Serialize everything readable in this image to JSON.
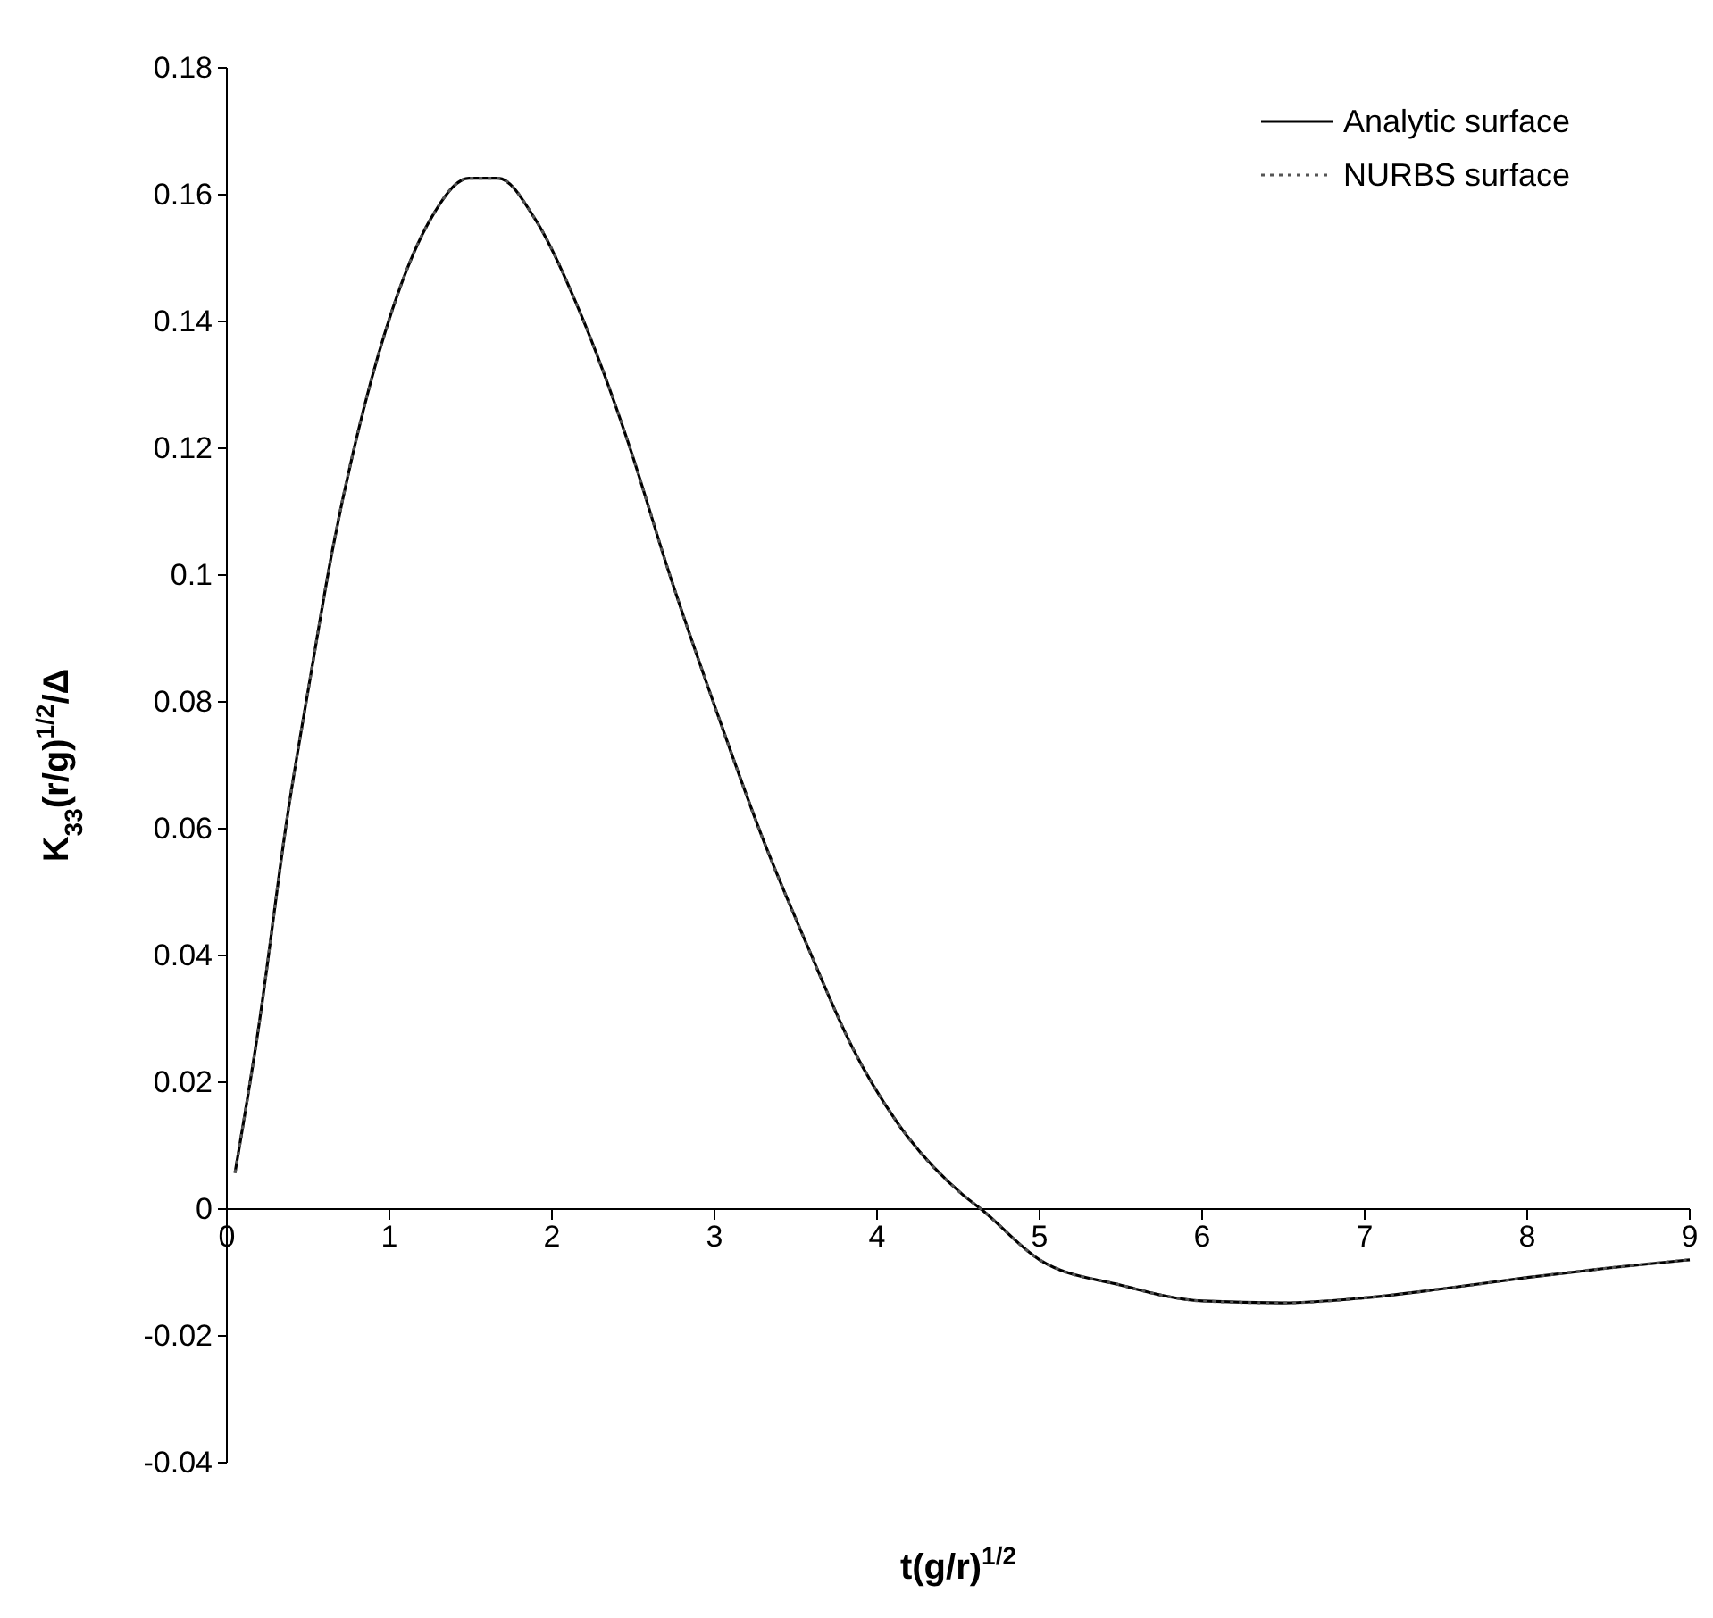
{
  "chart_data": {
    "type": "line",
    "xlabel": "t(g/r)$^{1/2}$",
    "ylabel": "K$_{33}$(r/g)$^{1/2}$/Δ",
    "x": [
      0.05,
      0.19,
      0.375,
      0.51,
      0.65,
      0.84,
      1.02,
      1.25,
      1.49,
      1.67,
      1.9,
      2.18,
      2.46,
      2.73,
      3.01,
      3.29,
      3.57,
      3.85,
      4.12,
      4.53,
      4.64,
      5,
      5.5,
      6,
      6.5,
      7,
      7.5,
      8,
      8.5,
      9
    ],
    "series": [
      {
        "name": "Analytic surface",
        "color": "#000000",
        "line_style": "solid",
        "values": [
          0.0057,
          0.0277,
          0.0624,
          0.0833,
          0.104,
          0.126,
          0.142,
          0.156,
          0.1626,
          0.1626,
          0.156,
          0.141,
          0.1216,
          0.0996,
          0.0787,
          0.0589,
          0.0416,
          0.0254,
          0.0138,
          0.0022,
          0,
          -0.008,
          -0.012,
          -0.0145,
          -0.0148,
          -0.014,
          -0.0125,
          -0.0108,
          -0.0093,
          -0.008
        ]
      },
      {
        "name": "NURBS surface",
        "color": "#555555",
        "line_style": "dotted",
        "values": [
          0.0057,
          0.0277,
          0.0624,
          0.0833,
          0.104,
          0.126,
          0.142,
          0.156,
          0.1626,
          0.1626,
          0.156,
          0.141,
          0.1216,
          0.0996,
          0.0787,
          0.0589,
          0.0416,
          0.0254,
          0.0138,
          0.0022,
          0,
          -0.008,
          -0.012,
          -0.0145,
          -0.0148,
          -0.014,
          -0.0125,
          -0.0108,
          -0.0093,
          -0.008
        ]
      }
    ],
    "xlim": [
      0,
      9
    ],
    "xticks": [
      0,
      1,
      2,
      3,
      4,
      5,
      6,
      7,
      8,
      9
    ],
    "ylim": [
      -0.04,
      0.18
    ],
    "yticks": [
      -0.04,
      -0.02,
      0,
      0.02,
      0.04,
      0.06,
      0.08,
      0.1,
      0.12,
      0.14,
      0.16,
      0.18
    ],
    "grid": false,
    "legend": "top right",
    "marker": "none"
  }
}
